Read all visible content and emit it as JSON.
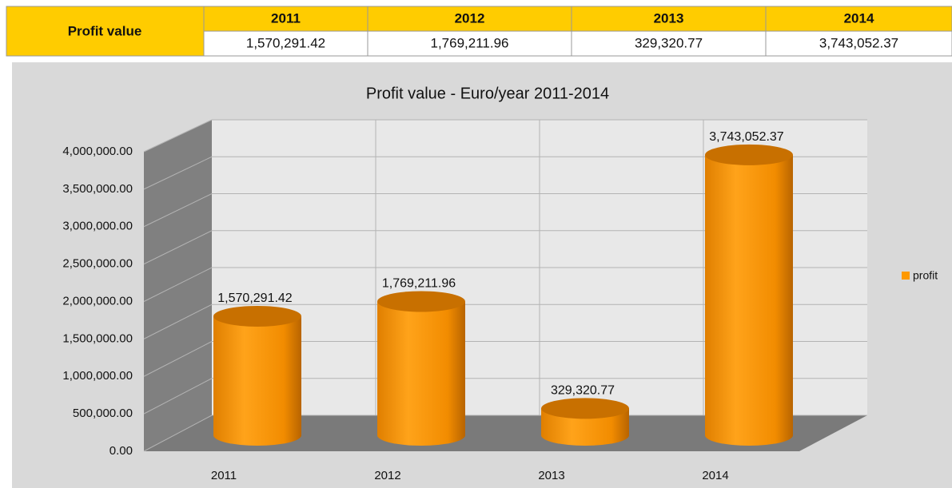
{
  "table": {
    "header": "Profit value",
    "columns": [
      "2011",
      "2012",
      "2013",
      "2014"
    ],
    "cells": [
      "1,570,291.42",
      "1,769,211.96",
      "329,320.77",
      "3,743,052.37"
    ]
  },
  "chart_data": {
    "type": "bar3d",
    "title": "Profit value - Euro/year 2011-2014",
    "categories": [
      "2011",
      "2012",
      "2013",
      "2014"
    ],
    "series": [
      {
        "name": "profit",
        "color": "#ff9900",
        "values": [
          1570291.42,
          1769211.96,
          329320.77,
          3743052.37
        ],
        "value_labels": [
          "1,570,291.42",
          "1,769,211.96",
          "329,320.77",
          "3,743,052.37"
        ]
      }
    ],
    "ylim": [
      0,
      4000000
    ],
    "yticks": [
      {
        "value": 0,
        "label": "0.00"
      },
      {
        "value": 500000,
        "label": "500,000.00"
      },
      {
        "value": 1000000,
        "label": "1,000,000.00"
      },
      {
        "value": 1500000,
        "label": "1,500,000.00"
      },
      {
        "value": 2000000,
        "label": "2,000,000.00"
      },
      {
        "value": 2500000,
        "label": "2,500,000.00"
      },
      {
        "value": 3000000,
        "label": "3,000,000.00"
      },
      {
        "value": 3500000,
        "label": "3,500,000.00"
      },
      {
        "value": 4000000,
        "label": "4,000,000.00"
      }
    ],
    "grid": true,
    "legend": "right"
  }
}
